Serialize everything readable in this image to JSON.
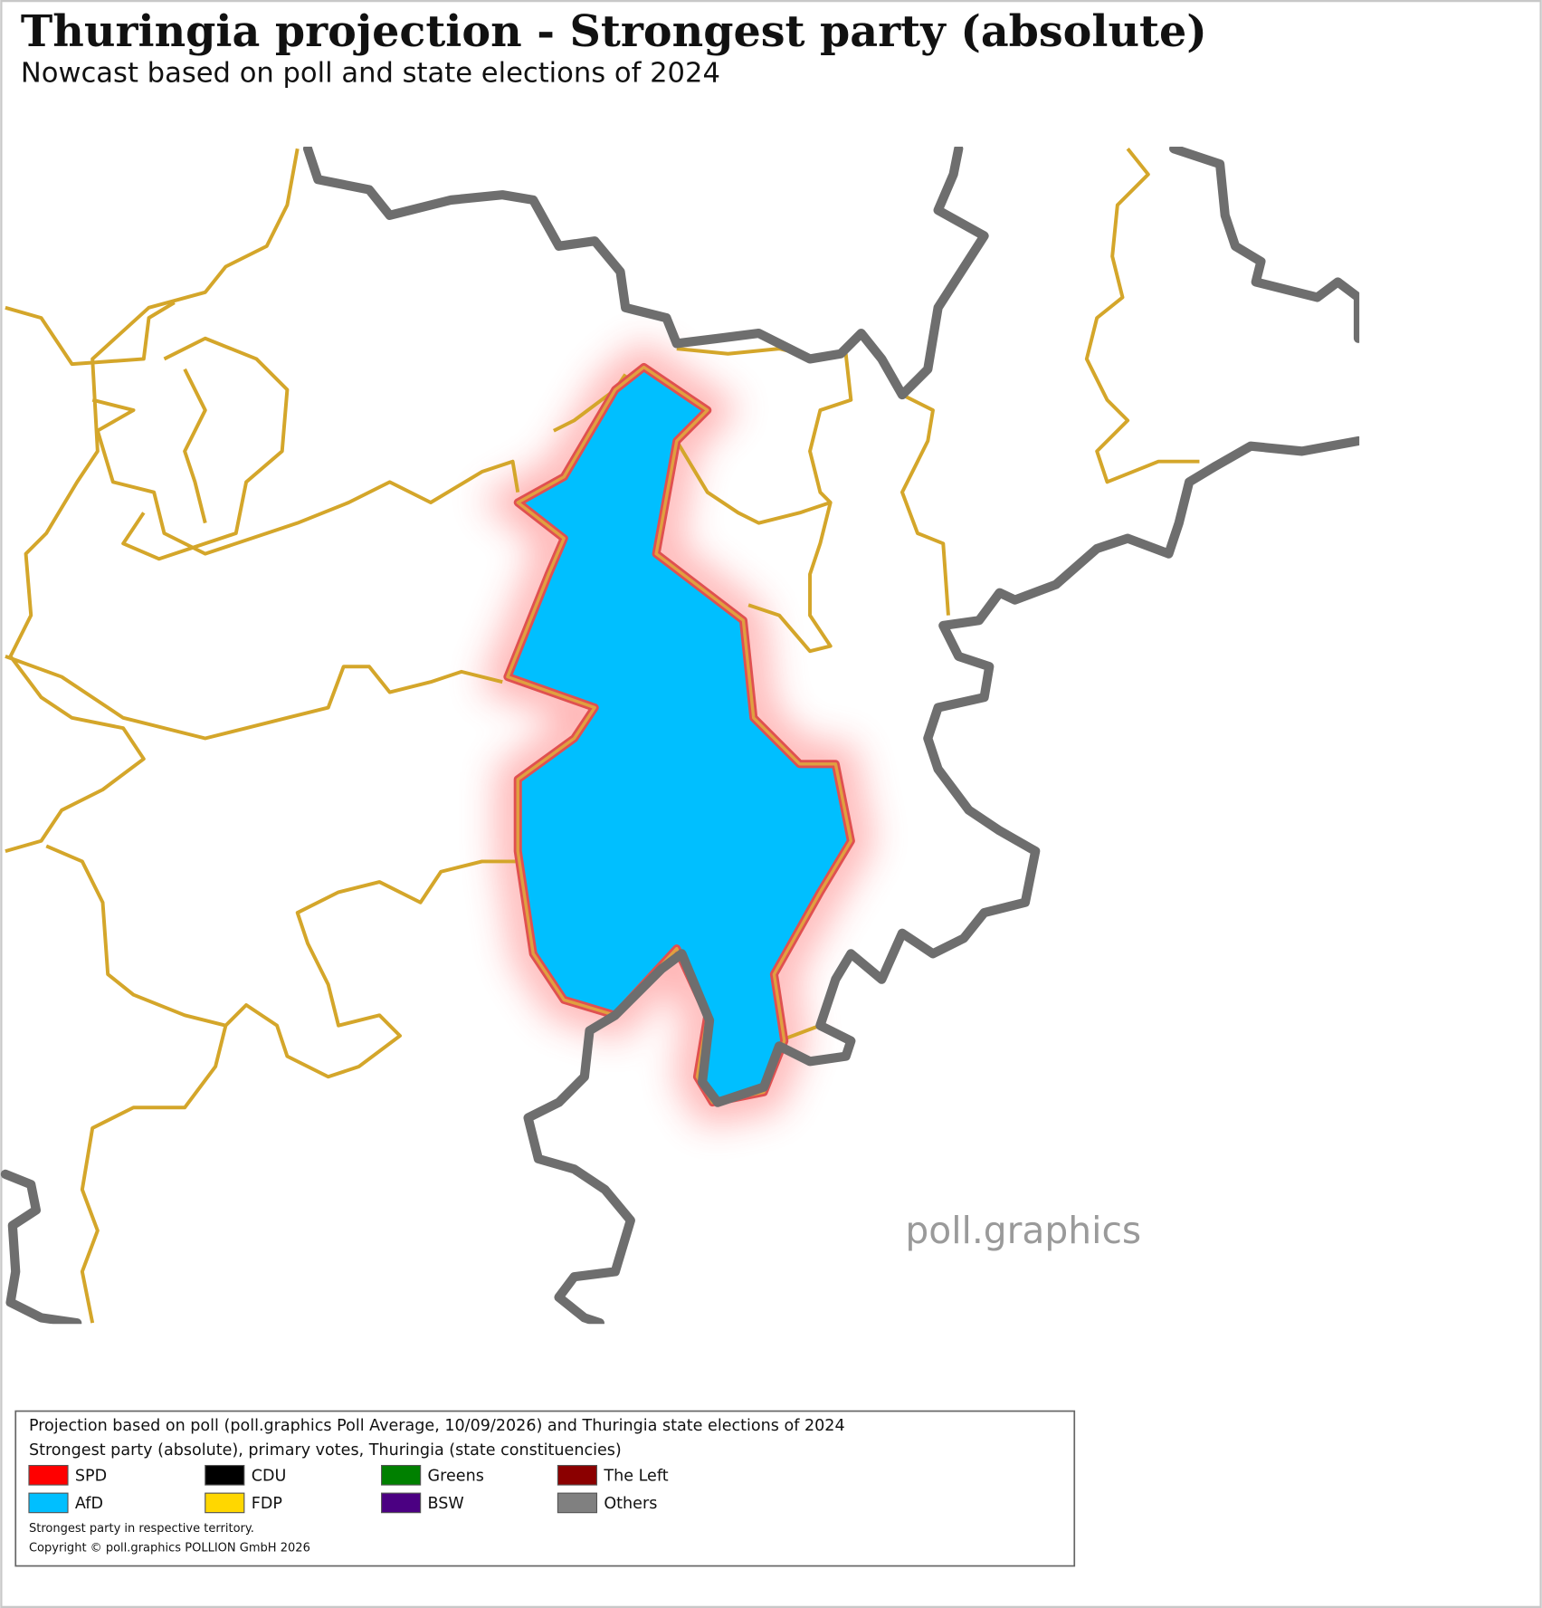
{
  "title": "Thuringia projection - Strongest party (absolute)",
  "subtitle": "Nowcast based on poll and state elections of 2024",
  "watermark": "poll.graphics",
  "legend": {
    "lines": [
      "Projection based on poll (poll.graphics Poll Average, 10/09/2026) and Thuringia state elections of 2024",
      "Strongest party (absolute), primary votes, Thuringia (state constituencies)"
    ],
    "items": [
      {
        "name": "SPD",
        "color": "#ff0000"
      },
      {
        "name": "CDU",
        "color": "#000000"
      },
      {
        "name": "Greens",
        "color": "#008000"
      },
      {
        "name": "The Left",
        "color": "#8b0000"
      },
      {
        "name": "AfD",
        "color": "#00bfff"
      },
      {
        "name": "FDP",
        "color": "#ffd700"
      },
      {
        "name": "BSW",
        "color": "#4b0082"
      },
      {
        "name": "Others",
        "color": "#808080"
      }
    ],
    "notes": [
      "Strongest party in respective territory.",
      "Copyright © poll.graphics POLLION GmbH 2026"
    ]
  }
}
